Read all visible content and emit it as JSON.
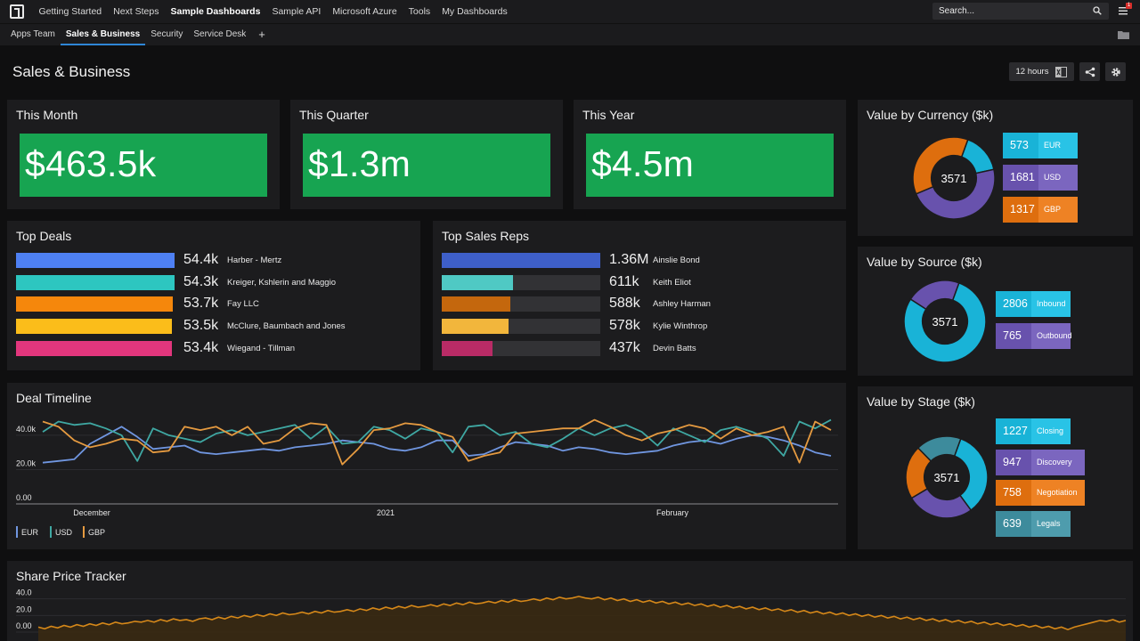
{
  "nav": {
    "items": [
      "Getting Started",
      "Next Steps",
      "Sample Dashboards",
      "Sample API",
      "Microsoft Azure",
      "Tools",
      "My Dashboards"
    ],
    "active": "Sample Dashboards",
    "search_placeholder": "Search...",
    "notification_count": "1"
  },
  "tabs": {
    "items": [
      "Apps Team",
      "Sales & Business",
      "Security",
      "Service Desk"
    ],
    "active": "Sales & Business",
    "add_label": "+"
  },
  "page": {
    "title": "Sales & Business",
    "timeframe": "12 hours"
  },
  "kpis": [
    {
      "title": "This Month",
      "value": "$463.5k"
    },
    {
      "title": "This Quarter",
      "value": "$1.3m"
    },
    {
      "title": "This Year",
      "value": "$4.5m"
    }
  ],
  "top_deals": {
    "title": "Top Deals",
    "items": [
      {
        "value": "54.4k",
        "name": "Harber - Mertz",
        "fraction": 1.0,
        "color": "#4e80f3"
      },
      {
        "value": "54.3k",
        "name": "Kreiger, Kshlerin and Maggio",
        "fraction": 0.998,
        "color": "#2dc6c0"
      },
      {
        "value": "53.7k",
        "name": "Fay LLC",
        "fraction": 0.987,
        "color": "#f5870c"
      },
      {
        "value": "53.5k",
        "name": "McClure, Baumbach and Jones",
        "fraction": 0.983,
        "color": "#fbbd1a"
      },
      {
        "value": "53.4k",
        "name": "Wiegand - Tillman",
        "fraction": 0.982,
        "color": "#e2367d"
      }
    ]
  },
  "top_reps": {
    "title": "Top Sales Reps",
    "items": [
      {
        "value": "1.36M",
        "name": "Ainslie Bond",
        "fraction": 1.0,
        "color": "#3e5fc9"
      },
      {
        "value": "611k",
        "name": "Keith Eliot",
        "fraction": 0.45,
        "color": "#4fc9c4"
      },
      {
        "value": "588k",
        "name": "Ashley Harman",
        "fraction": 0.43,
        "color": "#c4670d"
      },
      {
        "value": "578k",
        "name": "Kylie Winthrop",
        "fraction": 0.42,
        "color": "#f2b63c"
      },
      {
        "value": "437k",
        "name": "Devin Batts",
        "fraction": 0.32,
        "color": "#b92b66"
      }
    ]
  },
  "currency": {
    "title": "Value by Currency ($k)",
    "total": "3571",
    "items": [
      {
        "value": "573",
        "label": "EUR",
        "num": 573,
        "color": "#19b3d7",
        "light": "#29c3e6"
      },
      {
        "value": "1681",
        "label": "USD",
        "num": 1681,
        "color": "#6852ad",
        "light": "#7b66bf"
      },
      {
        "value": "1317",
        "label": "GBP",
        "num": 1317,
        "color": "#de6e0e",
        "light": "#ee8224"
      }
    ]
  },
  "source": {
    "title": "Value by Source ($k)",
    "total": "3571",
    "items": [
      {
        "value": "2806",
        "label": "Inbound",
        "num": 2806,
        "color": "#19b3d7",
        "light": "#29c3e6"
      },
      {
        "value": "765",
        "label": "Outbound",
        "num": 765,
        "color": "#6852ad",
        "light": "#7b66bf"
      }
    ]
  },
  "stage": {
    "title": "Value by Stage ($k)",
    "total": "3571",
    "items": [
      {
        "value": "1227",
        "label": "Closing",
        "num": 1227,
        "color": "#19b3d7",
        "light": "#29c3e6"
      },
      {
        "value": "947",
        "label": "Discovery",
        "num": 947,
        "color": "#6852ad",
        "light": "#7b66bf"
      },
      {
        "value": "758",
        "label": "Negotiation",
        "num": 758,
        "color": "#de6e0e",
        "light": "#ee8224"
      },
      {
        "value": "639",
        "label": "Legals",
        "num": 639,
        "color": "#3d8b9c",
        "light": "#4e9cad"
      }
    ]
  },
  "chart_data": [
    {
      "type": "line",
      "title": "Deal Timeline",
      "ylim": [
        0,
        55
      ],
      "y_ticks": [
        0,
        20,
        40
      ],
      "y_tick_labels": [
        "0.00",
        "20.0k",
        "40.0k"
      ],
      "x_labels": [
        "December",
        "2021",
        "February"
      ],
      "x": [
        0,
        1,
        2,
        3,
        4,
        5,
        6,
        7,
        8,
        9,
        10,
        11,
        12,
        13,
        14,
        15,
        16,
        17,
        18,
        19,
        20,
        21,
        22,
        23,
        24,
        25,
        26,
        27,
        28,
        29,
        30,
        31,
        32,
        33,
        34,
        35,
        36,
        37,
        38,
        39,
        40,
        41,
        42,
        43,
        44,
        45,
        46,
        47,
        48,
        49,
        50
      ],
      "series": [
        {
          "name": "EUR",
          "color": "#7096e0",
          "values": [
            24,
            25,
            26,
            35,
            40,
            45,
            39,
            32,
            33,
            34,
            30,
            29,
            30,
            31,
            32,
            31,
            33,
            34,
            35,
            37,
            36,
            35,
            32,
            31,
            33,
            37,
            37,
            28,
            29,
            33,
            36,
            35,
            34,
            31,
            33,
            32,
            30,
            29,
            30,
            31,
            34,
            36,
            37,
            35,
            38,
            40,
            39,
            37,
            34,
            30,
            28
          ]
        },
        {
          "name": "USD",
          "color": "#3fa8a3",
          "values": [
            42,
            48,
            46,
            47,
            44,
            40,
            25,
            44,
            40,
            38,
            36,
            41,
            43,
            40,
            42,
            44,
            46,
            38,
            45,
            35,
            36,
            45,
            43,
            38,
            44,
            42,
            30,
            45,
            46,
            40,
            42,
            35,
            33,
            38,
            44,
            40,
            44,
            46,
            42,
            34,
            44,
            40,
            36,
            43,
            45,
            42,
            38,
            28,
            48,
            44,
            49
          ]
        },
        {
          "name": "GBP",
          "color": "#e59a40",
          "values": [
            48,
            45,
            37,
            33,
            35,
            38,
            37,
            30,
            31,
            45,
            43,
            45,
            40,
            45,
            35,
            37,
            44,
            47,
            46,
            23,
            32,
            43,
            44,
            47,
            46,
            42,
            39,
            25,
            28,
            30,
            41,
            42,
            43,
            44,
            44,
            49,
            45,
            40,
            37,
            41,
            43,
            46,
            44,
            38,
            44,
            40,
            42,
            45,
            24,
            48,
            43
          ]
        }
      ]
    },
    {
      "type": "area",
      "title": "Share Price Tracker",
      "ylim": [
        0,
        45
      ],
      "y_ticks": [
        0,
        20,
        40
      ],
      "y_tick_labels": [
        "0.00",
        "20.0",
        "40.0"
      ],
      "series": [
        {
          "name": "Share Price",
          "color": "#d68819",
          "values": [
            6,
            4,
            7,
            5,
            8,
            6,
            9,
            7,
            10,
            8,
            11,
            9,
            12,
            10,
            11,
            13,
            12,
            14,
            12,
            15,
            13,
            16,
            14,
            15,
            13,
            16,
            17,
            15,
            18,
            16,
            19,
            17,
            20,
            18,
            21,
            19,
            22,
            20,
            23,
            21,
            22,
            24,
            22,
            25,
            23,
            26,
            24,
            25,
            27,
            25,
            28,
            26,
            29,
            27,
            30,
            28,
            31,
            29,
            32,
            30,
            31,
            33,
            31,
            34,
            32,
            35,
            33,
            36,
            34,
            35,
            37,
            35,
            38,
            36,
            39,
            37,
            38,
            40,
            38,
            41,
            39,
            42,
            40,
            41,
            43,
            41,
            40,
            42,
            39,
            41,
            38,
            40,
            37,
            39,
            36,
            38,
            35,
            37,
            34,
            36,
            33,
            35,
            32,
            34,
            31,
            33,
            30,
            32,
            29,
            31,
            28,
            30,
            27,
            29,
            26,
            28,
            25,
            27,
            24,
            26,
            23,
            25,
            22,
            24,
            21,
            23,
            20,
            22,
            19,
            21,
            18,
            20,
            17,
            19,
            16,
            18,
            15,
            17,
            14,
            16,
            13,
            15,
            12,
            14,
            11,
            13,
            10,
            12,
            9,
            11,
            8,
            10,
            7,
            9,
            6,
            8,
            5,
            7,
            4,
            6,
            3,
            6,
            8,
            10,
            12,
            14,
            13,
            15,
            12,
            14
          ]
        }
      ]
    }
  ]
}
